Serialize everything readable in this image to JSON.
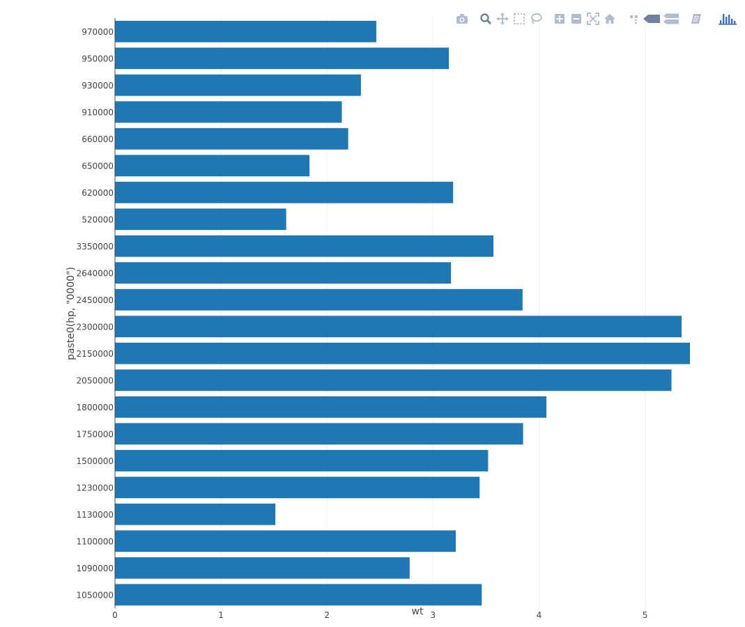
{
  "chart_data": {
    "type": "bar",
    "orientation": "horizontal",
    "categories": [
      "970000",
      "950000",
      "930000",
      "910000",
      "660000",
      "650000",
      "620000",
      "520000",
      "3350000",
      "2640000",
      "2450000",
      "2300000",
      "2150000",
      "2050000",
      "1800000",
      "1750000",
      "1500000",
      "1230000",
      "1130000",
      "1100000",
      "1090000",
      "1050000"
    ],
    "values": [
      2.465,
      3.15,
      2.32,
      2.14,
      2.2,
      1.835,
      3.19,
      1.615,
      3.57,
      3.17,
      3.845,
      5.345,
      5.424,
      5.25,
      4.07,
      3.85,
      3.52,
      3.44,
      1.513,
      3.215,
      2.78,
      3.46
    ],
    "xlabel": "wt",
    "ylabel": "paste0(hp, \"0000\")",
    "xlim": [
      0,
      5.424
    ],
    "x_ticks": [
      "0",
      "1",
      "2",
      "3",
      "4",
      "5"
    ],
    "bar_color": "#1f77b4",
    "grid": "vertical"
  },
  "modebar": {
    "buttons": [
      "camera-icon",
      "zoom-icon",
      "pan-icon",
      "box-select-icon",
      "lasso-icon",
      "zoom-in-icon",
      "zoom-out-icon",
      "autoscale-icon",
      "reset-axes-icon",
      "spike-lines-icon",
      "hover-closest-icon",
      "hover-compare-icon",
      "collaborate-icon",
      "plotly-logo-icon"
    ],
    "icon_color": "#b0bcd0",
    "active_color": "#7080a0",
    "logo_color": "#3f6fc4"
  }
}
